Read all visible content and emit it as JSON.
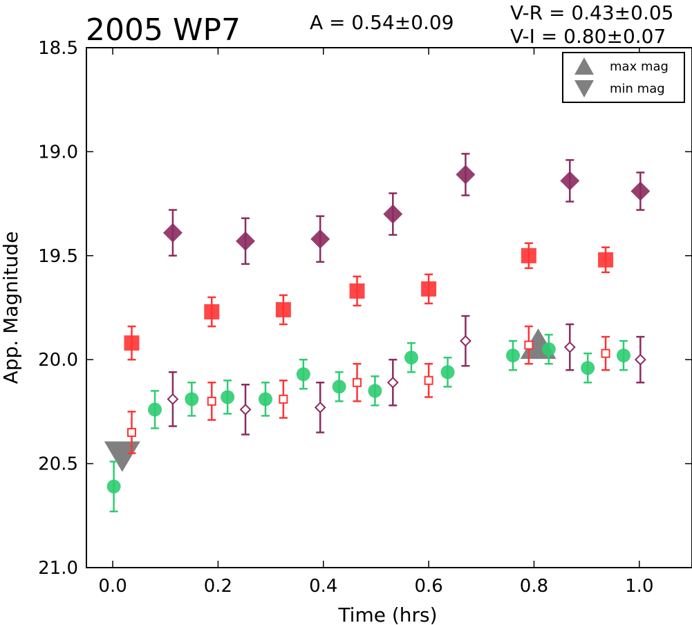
{
  "chart_data": {
    "type": "scatter",
    "title": "2005 WP7",
    "annotations": {
      "amplitude": "A  = 0.54±0.09",
      "v_r": "V-R = 0.43±0.05",
      "v_i": "V-I  = 0.80±0.07"
    },
    "xlabel": "Time (hrs)",
    "ylabel": "App. Magnitude",
    "xlim": [
      -0.05,
      1.1
    ],
    "ylim": [
      21.0,
      18.5
    ],
    "y_inverted": true,
    "xticks": [
      "0.0",
      "0.2",
      "0.4",
      "0.6",
      "0.8",
      "1.0"
    ],
    "yticks": [
      "18.5",
      "19.0",
      "19.5",
      "20.0",
      "20.5",
      "21.0"
    ],
    "grid": false,
    "legend": {
      "placement": "top-right",
      "entries": [
        {
          "label": "max mag",
          "marker": "triangle-up",
          "color": "#808080"
        },
        {
          "label": "min mag",
          "marker": "triangle-down",
          "color": "#808080"
        }
      ]
    },
    "series": [
      {
        "marker": "circle",
        "fill": "filled",
        "color": "#2ecc71",
        "points": [
          {
            "x": 0.002,
            "y": 20.61,
            "err": 0.12
          },
          {
            "x": 0.08,
            "y": 20.24,
            "err": 0.09
          },
          {
            "x": 0.15,
            "y": 20.19,
            "err": 0.08
          },
          {
            "x": 0.218,
            "y": 20.18,
            "err": 0.08
          },
          {
            "x": 0.29,
            "y": 20.19,
            "err": 0.08
          },
          {
            "x": 0.362,
            "y": 20.07,
            "err": 0.07
          },
          {
            "x": 0.43,
            "y": 20.13,
            "err": 0.07
          },
          {
            "x": 0.498,
            "y": 20.15,
            "err": 0.07
          },
          {
            "x": 0.567,
            "y": 19.99,
            "err": 0.07
          },
          {
            "x": 0.636,
            "y": 20.06,
            "err": 0.07
          },
          {
            "x": 0.76,
            "y": 19.98,
            "err": 0.07
          },
          {
            "x": 0.828,
            "y": 19.95,
            "err": 0.07
          },
          {
            "x": 0.902,
            "y": 20.04,
            "err": 0.07
          },
          {
            "x": 0.97,
            "y": 19.98,
            "err": 0.07
          }
        ]
      },
      {
        "marker": "square",
        "fill": "filled",
        "color": "#ff3333",
        "points": [
          {
            "x": 0.036,
            "y": 19.92,
            "err": 0.08
          },
          {
            "x": 0.188,
            "y": 19.77,
            "err": 0.07
          },
          {
            "x": 0.324,
            "y": 19.76,
            "err": 0.07
          },
          {
            "x": 0.464,
            "y": 19.67,
            "err": 0.07
          },
          {
            "x": 0.6,
            "y": 19.66,
            "err": 0.07
          },
          {
            "x": 0.79,
            "y": 19.5,
            "err": 0.06
          },
          {
            "x": 0.936,
            "y": 19.52,
            "err": 0.06
          }
        ]
      },
      {
        "marker": "diamond",
        "fill": "filled",
        "color": "#8b2a5f",
        "points": [
          {
            "x": 0.114,
            "y": 19.39,
            "err": 0.11
          },
          {
            "x": 0.252,
            "y": 19.43,
            "err": 0.11
          },
          {
            "x": 0.394,
            "y": 19.42,
            "err": 0.11
          },
          {
            "x": 0.532,
            "y": 19.3,
            "err": 0.1
          },
          {
            "x": 0.67,
            "y": 19.11,
            "err": 0.1
          },
          {
            "x": 0.868,
            "y": 19.14,
            "err": 0.1
          },
          {
            "x": 1.002,
            "y": 19.19,
            "err": 0.09
          }
        ]
      },
      {
        "marker": "square",
        "fill": "open",
        "color": "#ff3333",
        "points": [
          {
            "x": 0.036,
            "y": 20.35,
            "err": 0.1
          },
          {
            "x": 0.188,
            "y": 20.2,
            "err": 0.09
          },
          {
            "x": 0.324,
            "y": 20.19,
            "err": 0.09
          },
          {
            "x": 0.464,
            "y": 20.11,
            "err": 0.09
          },
          {
            "x": 0.6,
            "y": 20.1,
            "err": 0.08
          },
          {
            "x": 0.79,
            "y": 19.93,
            "err": 0.09
          },
          {
            "x": 0.936,
            "y": 19.97,
            "err": 0.08
          }
        ]
      },
      {
        "marker": "diamond",
        "fill": "open",
        "color": "#8b2a5f",
        "points": [
          {
            "x": 0.114,
            "y": 20.19,
            "err": 0.13
          },
          {
            "x": 0.252,
            "y": 20.24,
            "err": 0.12
          },
          {
            "x": 0.394,
            "y": 20.23,
            "err": 0.12
          },
          {
            "x": 0.532,
            "y": 20.11,
            "err": 0.11
          },
          {
            "x": 0.67,
            "y": 19.91,
            "err": 0.12
          },
          {
            "x": 0.868,
            "y": 19.94,
            "err": 0.11
          },
          {
            "x": 1.002,
            "y": 20.0,
            "err": 0.11
          }
        ]
      }
    ],
    "max_mag": {
      "x": 0.808,
      "y": 19.95,
      "color": "#808080"
    },
    "min_mag": {
      "x": 0.018,
      "y": 20.44,
      "color": "#808080"
    }
  }
}
